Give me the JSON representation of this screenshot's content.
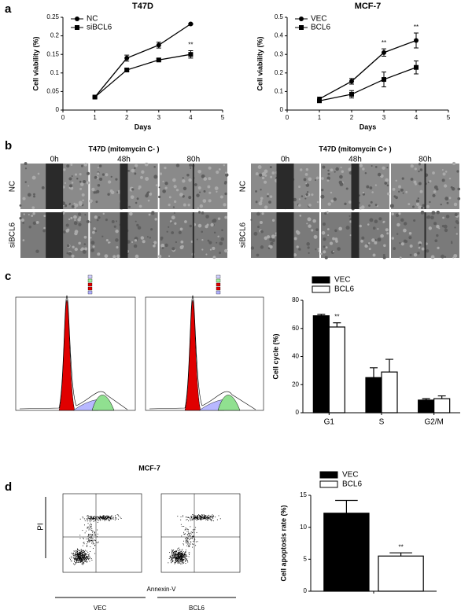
{
  "panel_labels": [
    "a",
    "b",
    "c",
    "d"
  ],
  "wound": {
    "titles": [
      "T47D (mitomycin C- )",
      "T47D (mitomycin C+ )"
    ],
    "times": [
      "0h",
      "48h",
      "80h"
    ],
    "rows": [
      "NC",
      "siBCL6"
    ]
  },
  "flow": {
    "title": "MCF-7",
    "ylabel": "PI",
    "xlabel": "Annexin-V",
    "samples": [
      "VEC",
      "BCL6"
    ]
  },
  "chart_data": [
    {
      "type": "line",
      "title": "T47D",
      "xlabel": "Days",
      "ylabel": "Cell viability (%)",
      "x": [
        1,
        2,
        3,
        4
      ],
      "xlim": [
        0,
        5
      ],
      "xticks": [
        0,
        1,
        2,
        3,
        4,
        5
      ],
      "ylim": [
        0,
        0.25
      ],
      "yticks": [
        0,
        0.05,
        0.1,
        0.15,
        0.2,
        0.25
      ],
      "legend": "upper left",
      "series": [
        {
          "name": "NC",
          "color": "#000000",
          "marker": "circle",
          "values": [
            0.035,
            0.14,
            0.175,
            0.232
          ],
          "errors": [
            0.003,
            0.008,
            0.008,
            0.002
          ]
        },
        {
          "name": "siBCL6",
          "color": "#000000",
          "marker": "square",
          "values": [
            0.035,
            0.108,
            0.135,
            0.15
          ],
          "errors": [
            0.003,
            0.003,
            0.004,
            0.01
          ]
        }
      ],
      "annotations": [
        {
          "text": "**",
          "x": 4,
          "series": 1
        }
      ]
    },
    {
      "type": "line",
      "title": "MCF-7",
      "xlabel": "Days",
      "ylabel": "Cell viability (%)",
      "x": [
        1,
        2,
        3,
        4
      ],
      "xlim": [
        0,
        5
      ],
      "xticks": [
        0,
        1,
        2,
        3,
        4,
        5
      ],
      "ylim": [
        0,
        0.5
      ],
      "yticks": [
        0,
        0.1,
        0.2,
        0.3,
        0.4,
        0.5
      ],
      "legend": "upper left",
      "series": [
        {
          "name": "VEC",
          "color": "#000000",
          "marker": "circle",
          "values": [
            0.06,
            0.155,
            0.31,
            0.375
          ],
          "errors": [
            0.01,
            0.015,
            0.02,
            0.04
          ]
        },
        {
          "name": "BCL6",
          "color": "#000000",
          "marker": "square",
          "values": [
            0.05,
            0.085,
            0.165,
            0.23
          ],
          "errors": [
            0.01,
            0.02,
            0.04,
            0.035
          ]
        }
      ],
      "annotations": [
        {
          "text": "**",
          "x": 3,
          "series": 0
        },
        {
          "text": "**",
          "x": 4,
          "series": 0
        }
      ]
    },
    {
      "type": "bar",
      "ylabel": "Cell cycle (%)",
      "categories": [
        "G1",
        "S",
        "G2/M"
      ],
      "ylim": [
        0,
        80
      ],
      "yticks": [
        0,
        20,
        40,
        60,
        80
      ],
      "legend": "upper left",
      "series": [
        {
          "name": "VEC",
          "color": "#000000",
          "values": [
            69,
            25,
            9
          ],
          "errors": [
            1,
            7,
            1
          ]
        },
        {
          "name": "BCL6",
          "color": "#ffffff",
          "values": [
            61,
            29,
            10
          ],
          "errors": [
            3,
            9,
            2
          ]
        }
      ],
      "annotations": [
        {
          "text": "**",
          "category": 0,
          "series": 1
        }
      ]
    },
    {
      "type": "bar",
      "ylabel": "Cell apoptosis rate (%)",
      "categories": [
        null
      ],
      "ylim": [
        0,
        15
      ],
      "yticks": [
        0,
        5,
        10,
        15
      ],
      "legend": "upper left",
      "series": [
        {
          "name": "VEC",
          "color": "#000000",
          "values": [
            12.2
          ],
          "errors": [
            2
          ]
        },
        {
          "name": "BCL6",
          "color": "#ffffff",
          "values": [
            5.5
          ],
          "errors": [
            0.5
          ]
        }
      ],
      "annotations": [
        {
          "text": "**",
          "category": 0,
          "series": 1
        }
      ]
    }
  ]
}
